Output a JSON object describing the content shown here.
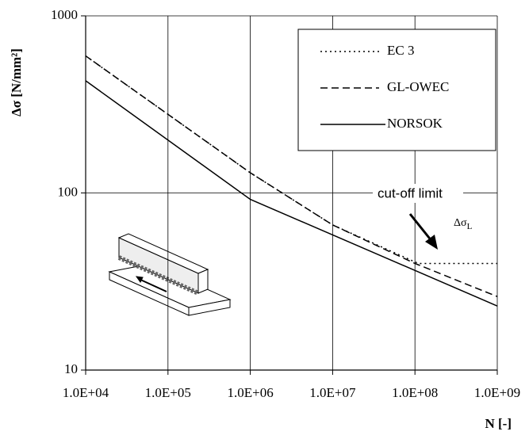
{
  "chart_data": {
    "type": "line",
    "ylabel": "Δσ [N/mm²]",
    "xlabel": "N [-]",
    "log_x": true,
    "log_y": true,
    "grid": true,
    "xlim": [
      10000,
      1000000000
    ],
    "ylim": [
      10,
      1000
    ],
    "xticks": [
      {
        "value": 10000,
        "label": "1.0E+04"
      },
      {
        "value": 100000,
        "label": "1.0E+05"
      },
      {
        "value": 1000000,
        "label": "1.0E+06"
      },
      {
        "value": 10000000,
        "label": "1.0E+07"
      },
      {
        "value": 100000000,
        "label": "1.0E+08"
      },
      {
        "value": 1000000000,
        "label": "1.0E+09"
      }
    ],
    "yticks": [
      10,
      100,
      1000
    ],
    "legend": "top-right",
    "series": [
      {
        "name": "EC 3",
        "color": "#000000",
        "dash": "dotted",
        "x": [
          10000,
          1000000,
          10000000,
          110000000,
          1000000000
        ],
        "values": [
          594,
          130,
          66,
          40,
          40
        ]
      },
      {
        "name": "GL-OWEC",
        "color": "#000000",
        "dash": "dashed",
        "x": [
          10000,
          1000000,
          10000000,
          100000000,
          1000000000
        ],
        "values": [
          594,
          130,
          66,
          40,
          26
        ]
      },
      {
        "name": "NORSOK",
        "color": "#000000",
        "dash": "solid",
        "x": [
          10000,
          1000000,
          1000000000
        ],
        "values": [
          430,
          92,
          23
        ]
      }
    ],
    "annotations": {
      "cutoff": "cut-off limit",
      "symbol": "Δσ",
      "symbol_sub": "L"
    }
  }
}
